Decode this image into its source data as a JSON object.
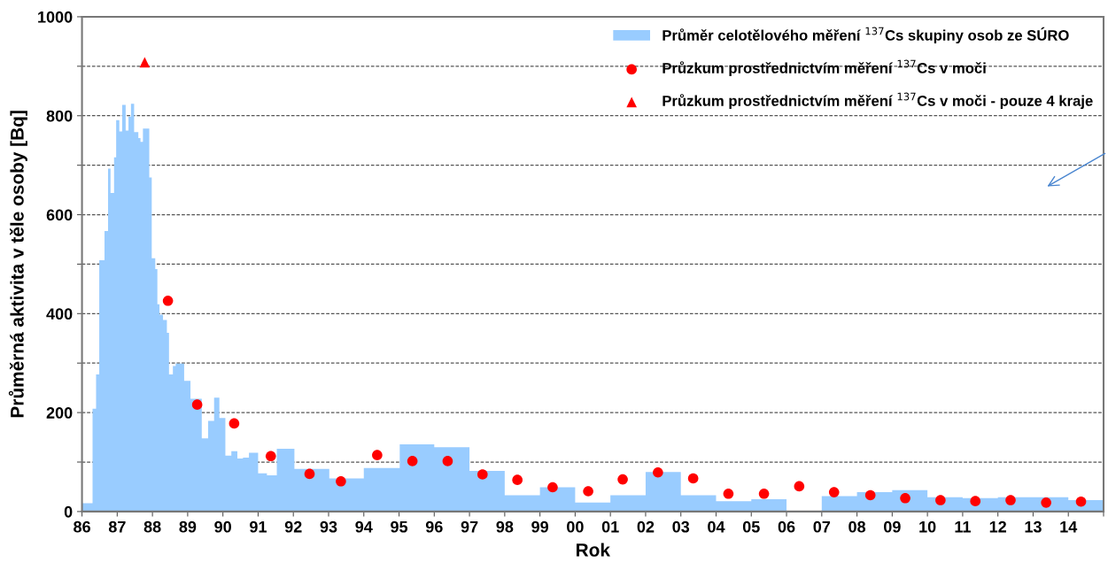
{
  "chart_data": {
    "type": "scatter",
    "xlabel": "Rok",
    "ylabel": "Průměrná aktivita v těle osoby [Bq]",
    "xlim": [
      1986,
      2015
    ],
    "xticks": [
      {
        "value": 1986,
        "label": "86"
      },
      {
        "value": 1987,
        "label": "87"
      },
      {
        "value": 1988,
        "label": "88"
      },
      {
        "value": 1989,
        "label": "89"
      },
      {
        "value": 1990,
        "label": "90"
      },
      {
        "value": 1991,
        "label": "91"
      },
      {
        "value": 1992,
        "label": "92"
      },
      {
        "value": 1993,
        "label": "93"
      },
      {
        "value": 1994,
        "label": "94"
      },
      {
        "value": 1995,
        "label": "95"
      },
      {
        "value": 1996,
        "label": "96"
      },
      {
        "value": 1997,
        "label": "97"
      },
      {
        "value": 1998,
        "label": "98"
      },
      {
        "value": 1999,
        "label": "99"
      },
      {
        "value": 2000,
        "label": "00"
      },
      {
        "value": 2001,
        "label": "01"
      },
      {
        "value": 2002,
        "label": "02"
      },
      {
        "value": 2003,
        "label": "03"
      },
      {
        "value": 2004,
        "label": "04"
      },
      {
        "value": 2005,
        "label": "05"
      },
      {
        "value": 2006,
        "label": "06"
      },
      {
        "value": 2007,
        "label": "07"
      },
      {
        "value": 2008,
        "label": "08"
      },
      {
        "value": 2009,
        "label": "09"
      },
      {
        "value": 2010,
        "label": "10"
      },
      {
        "value": 2011,
        "label": "11"
      },
      {
        "value": 2012,
        "label": "12"
      },
      {
        "value": 2013,
        "label": "13"
      },
      {
        "value": 2014,
        "label": "14"
      },
      {
        "value": 2015,
        "label": null
      }
    ],
    "ylim": [
      0,
      1000
    ],
    "yticks": [
      0,
      {
        "value": 100,
        "label": null
      },
      200,
      {
        "value": 300,
        "label": null
      },
      400,
      {
        "value": 500,
        "label": null
      },
      600,
      {
        "value": 700,
        "label": null
      },
      800,
      {
        "value": 900,
        "label": null
      },
      1000
    ],
    "grid": "y",
    "legend": "top right",
    "series": [
      {
        "type": "histogram",
        "name": "Průměr celotělového měření $^{137}$Cs skupiny osob ze SÚRO",
        "color": "#99ccff",
        "bins": [
          1986.0,
          1986.3,
          1986.4,
          1986.49,
          1986.64,
          1986.74,
          1986.81,
          1986.91,
          1986.97,
          1987.06,
          1987.14,
          1987.24,
          1987.32,
          1987.39,
          1987.48,
          1987.6,
          1987.66,
          1987.73,
          1987.91,
          1987.98,
          1988.08,
          1988.14,
          1988.2,
          1988.3,
          1988.41,
          1988.47,
          1988.58,
          1988.66,
          1988.9,
          1989.08,
          1989.4,
          1989.58,
          1989.75,
          1989.9,
          1990.07,
          1990.24,
          1990.41,
          1990.57,
          1990.74,
          1991.0,
          1991.25,
          1991.53,
          1992.03,
          1993.02,
          1994.0,
          1995.02,
          1996.0,
          1997.0,
          1998.0,
          1999.0,
          2000.0,
          2001.0,
          2002.0,
          2003.0,
          2004.0,
          2005.0,
          2006.0,
          2007.0,
          2008.0,
          2009.0,
          2010.0,
          2011.0,
          2012.0,
          2013.0,
          2014.0,
          2015.0
        ],
        "values": [
          17,
          208,
          277,
          508,
          567,
          693,
          644,
          716,
          791,
          768,
          822,
          770,
          798,
          824,
          767,
          755,
          747,
          774,
          675,
          512,
          490,
          419,
          398,
          387,
          361,
          277,
          294,
          299,
          264,
          228,
          148,
          183,
          230,
          189,
          113,
          122,
          107,
          109,
          119,
          77,
          73,
          127,
          86,
          67,
          88,
          136,
          130,
          82,
          33,
          49,
          18,
          33,
          80,
          33,
          21,
          25,
          0,
          31,
          39,
          43,
          29,
          27,
          29,
          29,
          23
        ]
      },
      {
        "name": "Průzkum prostřednictvím měření $^{137}$Cs v moči",
        "color": "#ff0000",
        "marker": "circle",
        "x": [
          1988.44,
          1989.27,
          1990.32,
          1991.36,
          1992.46,
          1993.35,
          1994.38,
          1995.38,
          1996.38,
          1997.37,
          1998.36,
          1999.36,
          2000.37,
          2001.35,
          2002.35,
          2003.35,
          2004.35,
          2005.36,
          2006.36,
          2007.35,
          2008.38,
          2009.37,
          2010.37,
          2011.36,
          2012.36,
          2013.37,
          2014.36
        ],
        "values": [
          426,
          216,
          178,
          112,
          76,
          61,
          114,
          102,
          102,
          75,
          64,
          49,
          41,
          65,
          79,
          67,
          36,
          36,
          51,
          39,
          33,
          27,
          23,
          21,
          23,
          18,
          20
        ]
      },
      {
        "name": "Průzkum prostřednictvím měření $^{137}$Cs v moči - pouze 4 kraje",
        "color": "#ff0000",
        "marker": "triangle",
        "x": [
          1987.78
        ],
        "values": [
          908
        ]
      }
    ]
  }
}
